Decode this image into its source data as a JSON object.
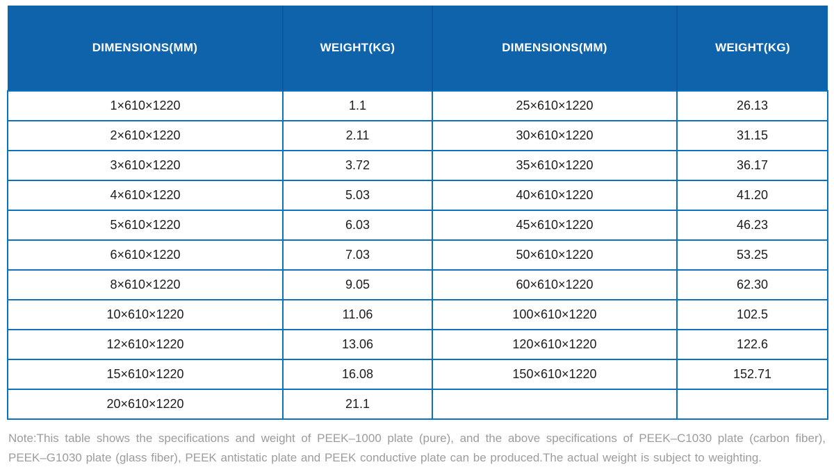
{
  "table": {
    "headers": [
      "DIMENSIONS(MM)",
      "WEIGHT(KG)",
      "DIMENSIONS(MM)",
      "WEIGHT(KG)"
    ],
    "rows": [
      [
        "1×610×1220",
        "1.1",
        "25×610×1220",
        "26.13"
      ],
      [
        "2×610×1220",
        "2.11",
        "30×610×1220",
        "31.15"
      ],
      [
        "3×610×1220",
        "3.72",
        "35×610×1220",
        "36.17"
      ],
      [
        "4×610×1220",
        "5.03",
        "40×610×1220",
        "41.20"
      ],
      [
        "5×610×1220",
        "6.03",
        "45×610×1220",
        "46.23"
      ],
      [
        "6×610×1220",
        "7.03",
        "50×610×1220",
        "53.25"
      ],
      [
        "8×610×1220",
        "9.05",
        "60×610×1220",
        "62.30"
      ],
      [
        "10×610×1220",
        "11.06",
        "100×610×1220",
        "102.5"
      ],
      [
        "12×610×1220",
        "13.06",
        "120×610×1220",
        "122.6"
      ],
      [
        "15×610×1220",
        "16.08",
        "150×610×1220",
        "152.71"
      ],
      [
        "20×610×1220",
        "21.1",
        "",
        ""
      ]
    ]
  },
  "note": "Note:This table shows the specifications and weight of PEEK–1000 plate (pure), and the above specifications of PEEK–C1030 plate (carbon fiber), PEEK–G1030 plate (glass fiber), PEEK antistatic plate and PEEK conductive plate can be produced.The actual weight is subject to weighting.",
  "colors": {
    "header_background": "#0e63ab",
    "header_divider": "#0b589c",
    "grid_border": "#0c72bd",
    "body_text": "#1c1c1c",
    "note_text": "#9c9c9c"
  }
}
